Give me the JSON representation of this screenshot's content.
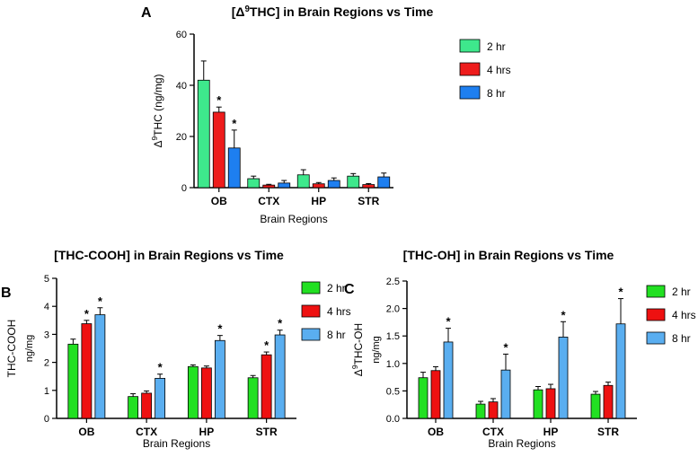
{
  "chart_data": [
    {
      "panel_label": "A",
      "type": "bar",
      "title": "[Δ9THC] in Brain Regions vs Time",
      "title_parts": [
        "[Δ",
        "9",
        "THC] in Brain Regions vs Time"
      ],
      "ylabel": "Δ9THC (ng/mg)",
      "ylabel_parts": [
        "Δ",
        "9",
        "THC (ng/mg)"
      ],
      "xlabel": "Brain Regions",
      "categories": [
        "OB",
        "CTX",
        "HP",
        "STR"
      ],
      "ylim": [
        0,
        60
      ],
      "yticks": [
        0,
        20,
        40,
        60
      ],
      "series": [
        {
          "name": "2 hr",
          "color": "#3ee88c",
          "values": [
            42,
            3.5,
            5,
            4.5
          ],
          "errors": [
            7.5,
            1,
            2,
            1
          ],
          "significant": [
            false,
            false,
            false,
            false
          ]
        },
        {
          "name": "4 hrs",
          "color": "#ee1c1c",
          "values": [
            29.5,
            1,
            1.5,
            1.2
          ],
          "errors": [
            2,
            0.3,
            0.5,
            0.4
          ],
          "significant": [
            true,
            false,
            false,
            false
          ]
        },
        {
          "name": "8 hr",
          "color": "#1e7ff0",
          "values": [
            15.5,
            1.8,
            2.8,
            4.2
          ],
          "errors": [
            7,
            1,
            1,
            1.5
          ],
          "significant": [
            true,
            false,
            false,
            false
          ]
        }
      ],
      "significance_marker": "*",
      "grid": false,
      "legend_placement": "right"
    },
    {
      "panel_label": "B",
      "type": "bar",
      "title": "[THC-COOH] in Brain Regions vs Time",
      "ylabel": "THC-COOH",
      "ylabel2": "ng/mg",
      "xlabel": "Brain Regions",
      "categories": [
        "OB",
        "CTX",
        "HP",
        "STR"
      ],
      "ylim": [
        0,
        5
      ],
      "yticks": [
        0,
        1,
        2,
        3,
        4,
        5
      ],
      "series": [
        {
          "name": "2 hr",
          "color": "#22e022",
          "values": [
            2.65,
            0.78,
            1.85,
            1.45
          ],
          "errors": [
            0.18,
            0.1,
            0.06,
            0.08
          ],
          "significant": [
            false,
            false,
            false,
            false
          ]
        },
        {
          "name": "4 hrs",
          "color": "#ee1111",
          "values": [
            3.38,
            0.9,
            1.8,
            2.27
          ],
          "errors": [
            0.12,
            0.08,
            0.07,
            0.1
          ],
          "significant": [
            true,
            false,
            false,
            true
          ]
        },
        {
          "name": "8 hr",
          "color": "#5aaef0",
          "values": [
            3.7,
            1.43,
            2.78,
            2.98
          ],
          "errors": [
            0.25,
            0.15,
            0.18,
            0.17
          ],
          "significant": [
            true,
            true,
            true,
            true
          ]
        }
      ],
      "significance_marker": "*",
      "grid": false,
      "legend_placement": "right"
    },
    {
      "panel_label": "C",
      "type": "bar",
      "title": "[THC-OH] in Brain Regions vs Time",
      "ylabel": "Δ9THC-OH",
      "ylabel_parts": [
        "Δ",
        "9",
        "THC-OH"
      ],
      "ylabel2": "ng/mg",
      "xlabel": "Brain Regions",
      "categories": [
        "OB",
        "CTX",
        "HP",
        "STR"
      ],
      "ylim": [
        0,
        2.5
      ],
      "yticks": [
        "0.0",
        "0.5",
        "1.0",
        "1.5",
        "2.0",
        "2.5"
      ],
      "series": [
        {
          "name": "2 hr",
          "color": "#22e022",
          "values": [
            0.74,
            0.26,
            0.52,
            0.44
          ],
          "errors": [
            0.1,
            0.05,
            0.06,
            0.05
          ],
          "significant": [
            false,
            false,
            false,
            false
          ]
        },
        {
          "name": "4 hrs",
          "color": "#ee1111",
          "values": [
            0.87,
            0.3,
            0.54,
            0.6
          ],
          "errors": [
            0.07,
            0.06,
            0.08,
            0.06
          ],
          "significant": [
            false,
            false,
            false,
            false
          ]
        },
        {
          "name": "8 hr",
          "color": "#5aaef0",
          "values": [
            1.39,
            0.88,
            1.48,
            1.72
          ],
          "errors": [
            0.25,
            0.29,
            0.28,
            0.46
          ],
          "significant": [
            true,
            true,
            true,
            true
          ]
        }
      ],
      "significance_marker": "*",
      "grid": false,
      "legend_placement": "right"
    }
  ]
}
